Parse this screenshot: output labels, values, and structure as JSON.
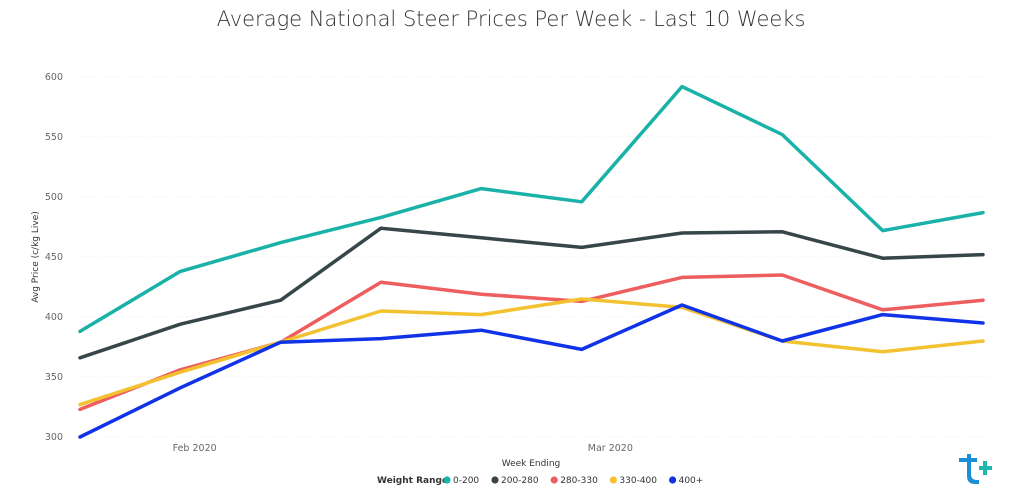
{
  "chart_data": {
    "type": "line",
    "title": "Average National Steer Prices Per Week - Last 10 Weeks",
    "xlabel": "Week Ending",
    "ylabel": "Avg Price (c/kg Live)",
    "ylim": [
      300,
      600
    ],
    "yticks": [
      300,
      350,
      400,
      450,
      500,
      550,
      600
    ],
    "grid": true,
    "legend_position": "bottom",
    "legend_title": "Weight Range",
    "x": [
      "2020-01-24",
      "2020-01-31",
      "2020-02-07",
      "2020-02-14",
      "2020-02-21",
      "2020-02-28",
      "2020-03-06",
      "2020-03-13",
      "2020-03-20",
      "2020-03-27"
    ],
    "xtick_labels": [
      {
        "label": "Feb 2020",
        "date": "2020-02-01"
      },
      {
        "label": "Mar 2020",
        "date": "2020-03-01"
      }
    ],
    "series": [
      {
        "name": "0-200",
        "color": "#1ab2a8",
        "values": [
          388,
          438,
          462,
          483,
          507,
          496,
          592,
          552,
          472,
          487
        ]
      },
      {
        "name": "200-280",
        "color": "#374649",
        "values": [
          366,
          394,
          414,
          474,
          466,
          458,
          470,
          471,
          449,
          452
        ]
      },
      {
        "name": "280-330",
        "color": "#ee5e5e",
        "values": [
          323,
          356,
          379,
          429,
          419,
          413,
          433,
          435,
          406,
          414
        ]
      },
      {
        "name": "330-400",
        "color": "#f2c230",
        "values": [
          327,
          354,
          379,
          405,
          402,
          415,
          408,
          380,
          371,
          380
        ]
      },
      {
        "name": "400+",
        "color": "#1033e8",
        "values": [
          300,
          341,
          379,
          382,
          389,
          373,
          410,
          380,
          402,
          395
        ]
      }
    ]
  },
  "logo": {
    "icon": "brand-logo-icon",
    "colors": [
      "#1a8fd6",
      "#1fb8b0"
    ]
  }
}
